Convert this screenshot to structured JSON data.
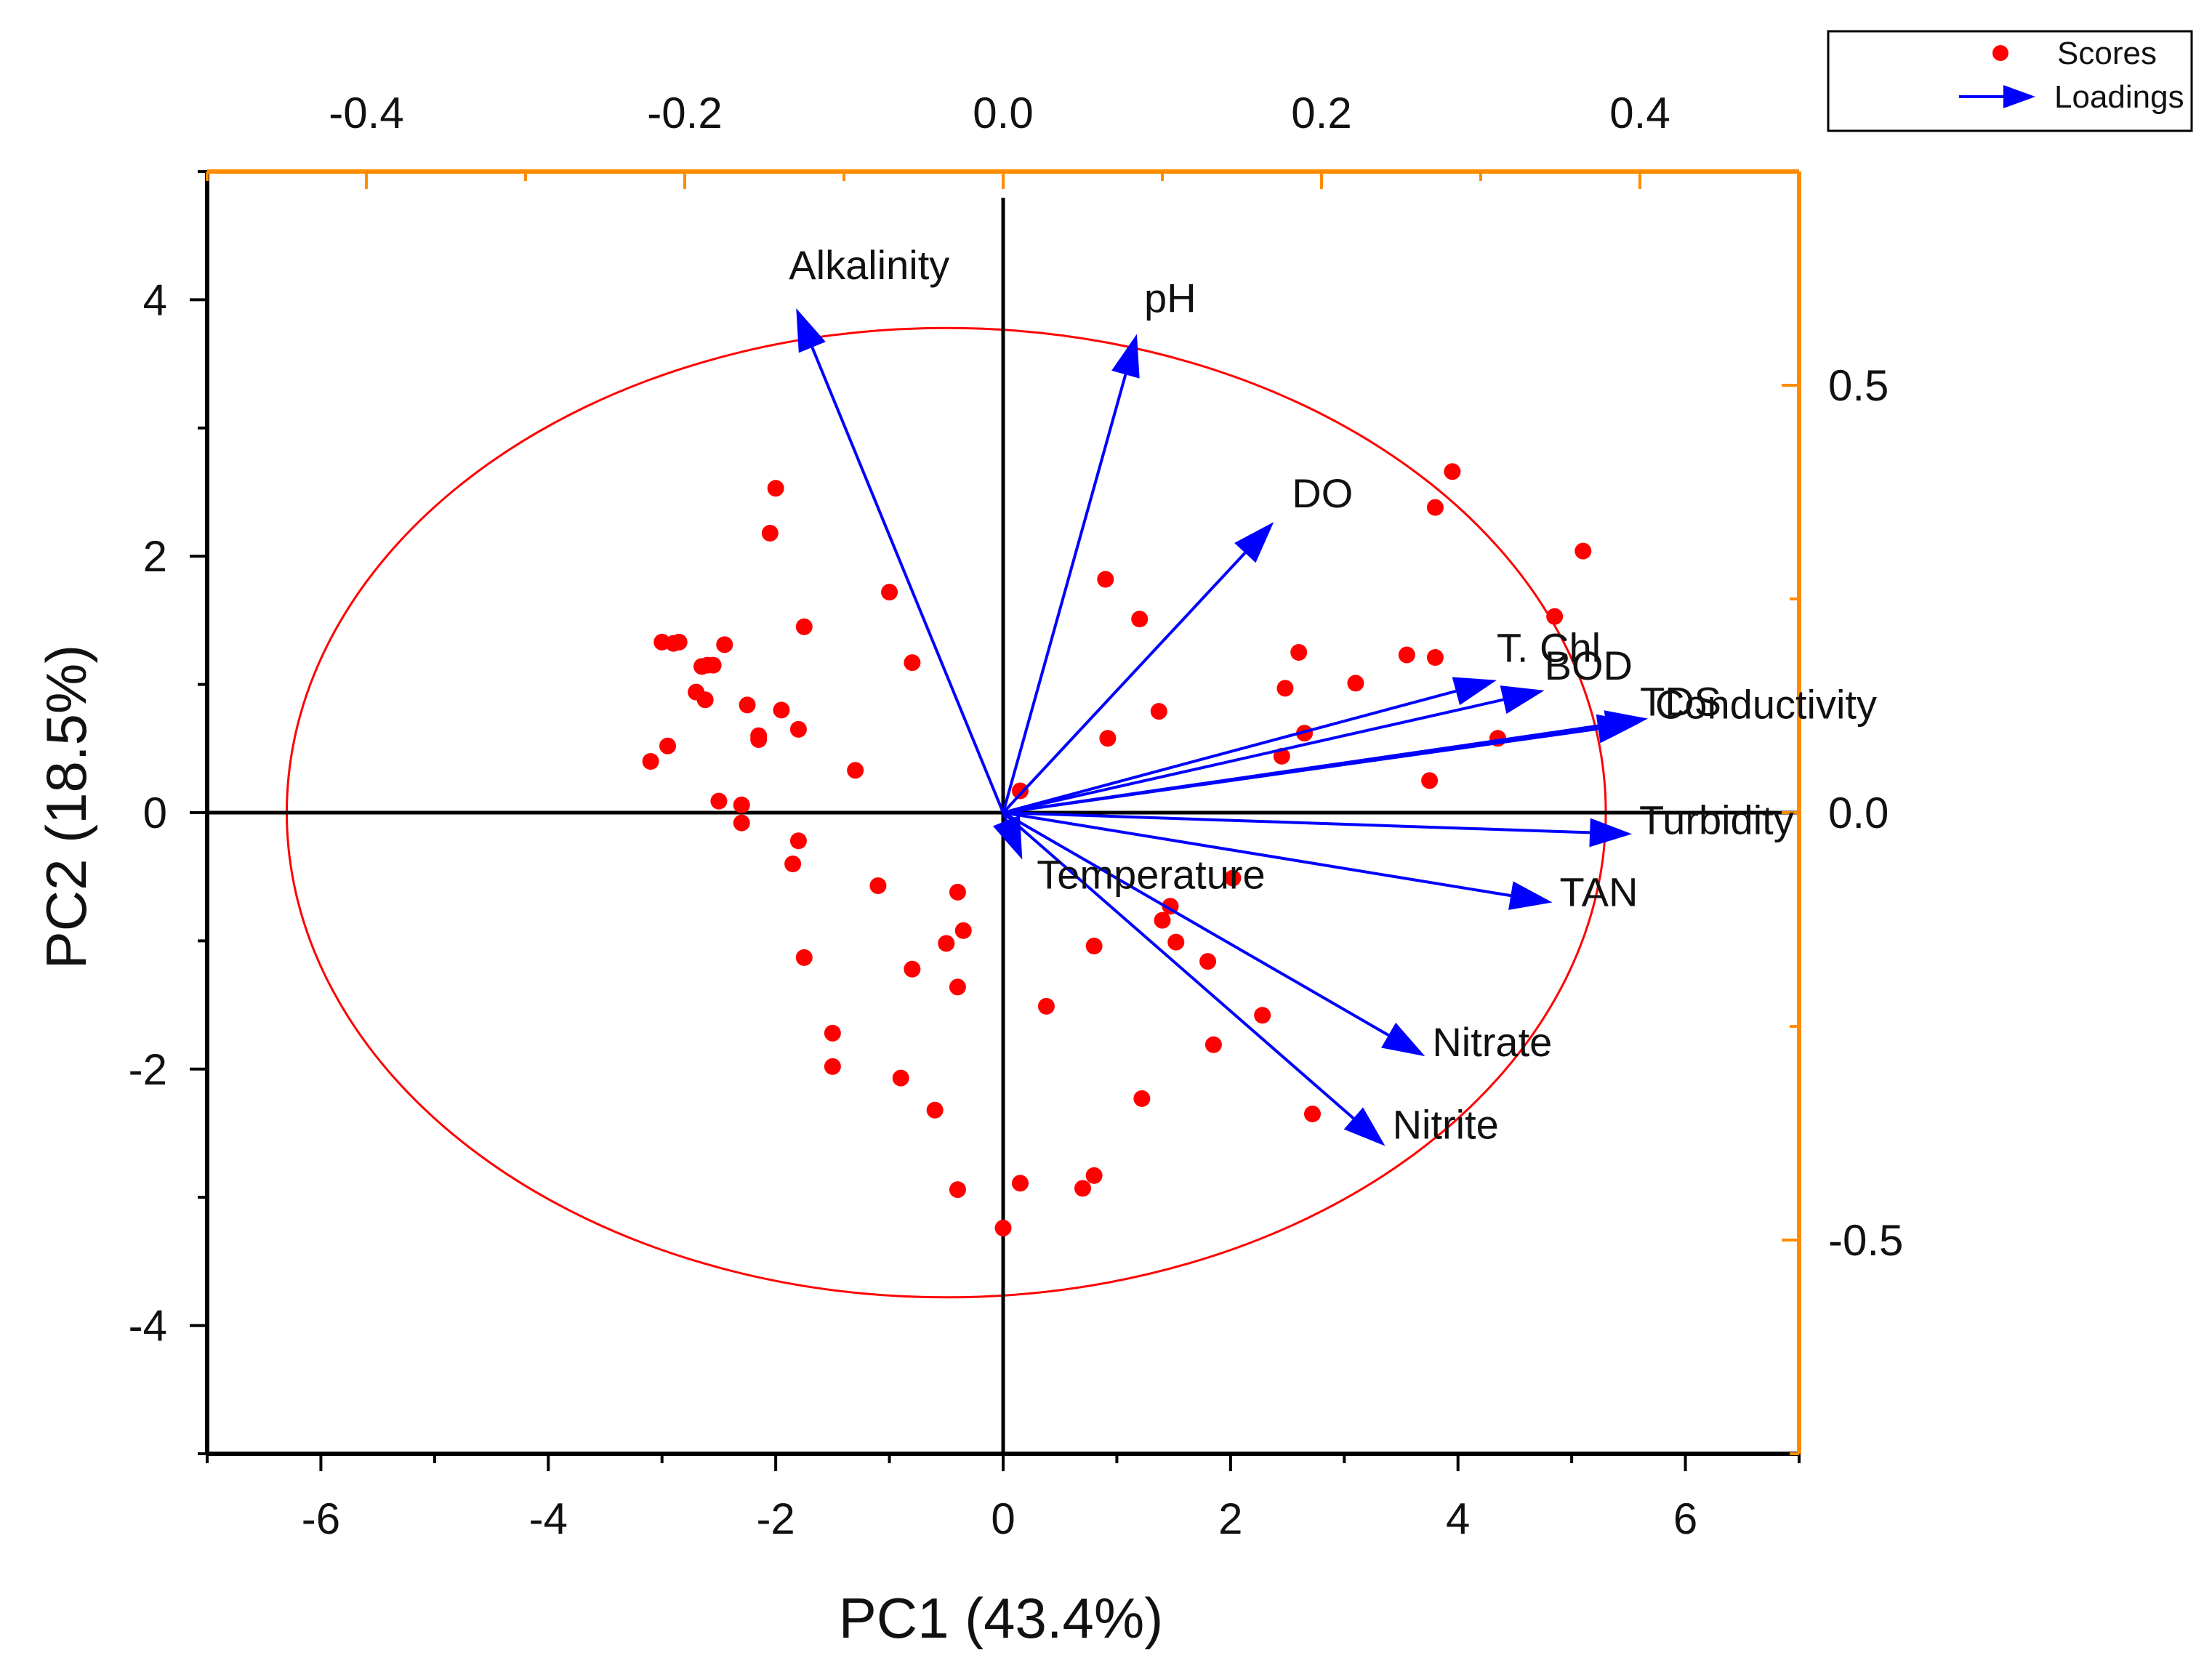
{
  "chart_data": {
    "type": "scatter",
    "title": "",
    "xlabel": "PC1 (43.4%)",
    "ylabel": "PC2 (18.5%)",
    "xlim": [
      -7,
      7
    ],
    "ylim": [
      -5,
      5
    ],
    "xticks": [
      -6,
      -4,
      -2,
      0,
      2,
      4,
      6
    ],
    "xtick_labels": [
      "-6",
      "-4",
      "-2",
      "0",
      "2",
      "4",
      "6"
    ],
    "yticks": [
      -4,
      -2,
      0,
      2,
      4
    ],
    "ytick_labels": [
      "-4",
      "-2",
      "0",
      "2",
      "4"
    ],
    "top_axis": {
      "lim": [
        -0.5,
        0.5
      ],
      "ticks": [
        -0.4,
        -0.2,
        0.0,
        0.2,
        0.4
      ],
      "tick_labels": [
        "-0.4",
        "-0.2",
        "0.0",
        "0.2",
        "0.4"
      ],
      "color": "#FF8C00"
    },
    "right_axis": {
      "lim": [
        -0.75,
        0.75
      ],
      "ticks": [
        0.5,
        0.0,
        -0.5
      ],
      "tick_labels": [
        "0.5",
        "0.0",
        "-0.5"
      ],
      "color": "#FF8C00"
    },
    "legend": {
      "position": "top-right-outside",
      "entries": [
        {
          "label": "Scores",
          "marker": "dot",
          "color": "#FF0000"
        },
        {
          "label": "Loadings",
          "marker": "arrow",
          "color": "#0000FF"
        }
      ]
    },
    "confidence_ellipse": {
      "cx": -0.5,
      "cy": 0,
      "rx": 5.8,
      "ry": 3.78,
      "color": "#FF0000"
    },
    "scores": [
      {
        "x": -3.1,
        "y": 0.4
      },
      {
        "x": -3.0,
        "y": 1.33
      },
      {
        "x": -2.9,
        "y": 1.32
      },
      {
        "x": -2.85,
        "y": 1.33
      },
      {
        "x": -2.95,
        "y": 0.52
      },
      {
        "x": -2.7,
        "y": 0.94
      },
      {
        "x": -2.65,
        "y": 1.14
      },
      {
        "x": -2.6,
        "y": 1.15
      },
      {
        "x": -2.62,
        "y": 0.88
      },
      {
        "x": -2.55,
        "y": 1.15
      },
      {
        "x": -2.45,
        "y": 1.31
      },
      {
        "x": -2.25,
        "y": 0.84
      },
      {
        "x": -2.15,
        "y": 0.57
      },
      {
        "x": -2.15,
        "y": 0.6
      },
      {
        "x": -2.5,
        "y": 0.09
      },
      {
        "x": -2.3,
        "y": 0.06
      },
      {
        "x": -2.3,
        "y": -0.08
      },
      {
        "x": -1.95,
        "y": 0.8
      },
      {
        "x": -1.8,
        "y": 0.65
      },
      {
        "x": -1.75,
        "y": 1.45
      },
      {
        "x": -2.05,
        "y": 2.18
      },
      {
        "x": -2.0,
        "y": 2.53
      },
      {
        "x": -1.8,
        "y": -0.22
      },
      {
        "x": -1.85,
        "y": -0.4
      },
      {
        "x": -1.75,
        "y": -1.13
      },
      {
        "x": -1.3,
        "y": 0.33
      },
      {
        "x": -1.5,
        "y": -1.72
      },
      {
        "x": -1.5,
        "y": -1.98
      },
      {
        "x": -1.0,
        "y": 1.72
      },
      {
        "x": -0.8,
        "y": 1.17
      },
      {
        "x": -1.1,
        "y": -0.57
      },
      {
        "x": -0.8,
        "y": -1.22
      },
      {
        "x": -0.9,
        "y": -2.07
      },
      {
        "x": -0.6,
        "y": -2.32
      },
      {
        "x": -0.5,
        "y": -1.02
      },
      {
        "x": -0.4,
        "y": -0.62
      },
      {
        "x": -0.35,
        "y": -0.92
      },
      {
        "x": -0.4,
        "y": -1.36
      },
      {
        "x": -0.4,
        "y": -2.94
      },
      {
        "x": 0.0,
        "y": -3.24
      },
      {
        "x": 0.15,
        "y": 0.17
      },
      {
        "x": 0.15,
        "y": -2.89
      },
      {
        "x": 0.38,
        "y": -1.51
      },
      {
        "x": 0.7,
        "y": -2.93
      },
      {
        "x": 0.8,
        "y": -2.83
      },
      {
        "x": 0.8,
        "y": -1.04
      },
      {
        "x": 0.9,
        "y": 1.82
      },
      {
        "x": 0.92,
        "y": 0.58
      },
      {
        "x": 1.2,
        "y": 1.51
      },
      {
        "x": 1.22,
        "y": -2.23
      },
      {
        "x": 1.37,
        "y": 0.79
      },
      {
        "x": 1.4,
        "y": -0.84
      },
      {
        "x": 1.47,
        "y": -0.73
      },
      {
        "x": 1.52,
        "y": -1.01
      },
      {
        "x": 1.8,
        "y": -1.16
      },
      {
        "x": 1.85,
        "y": -1.81
      },
      {
        "x": 2.02,
        "y": -0.51
      },
      {
        "x": 2.28,
        "y": -1.58
      },
      {
        "x": 2.45,
        "y": 0.44
      },
      {
        "x": 2.48,
        "y": 0.97
      },
      {
        "x": 2.6,
        "y": 1.25
      },
      {
        "x": 2.65,
        "y": 0.62
      },
      {
        "x": 2.72,
        "y": -2.35
      },
      {
        "x": 3.1,
        "y": 1.01
      },
      {
        "x": 3.55,
        "y": 1.23
      },
      {
        "x": 3.75,
        "y": 0.25
      },
      {
        "x": 3.8,
        "y": 1.21
      },
      {
        "x": 3.8,
        "y": 2.38
      },
      {
        "x": 3.95,
        "y": 2.66
      },
      {
        "x": 4.35,
        "y": 0.58
      },
      {
        "x": 4.85,
        "y": 1.53
      },
      {
        "x": 5.1,
        "y": 2.04
      }
    ],
    "loadings": [
      {
        "name": "Alkalinity",
        "pc1": -0.13,
        "pc2": 0.59
      },
      {
        "name": "pH",
        "pc1": 0.084,
        "pc2": 0.56
      },
      {
        "name": "DO",
        "pc1": 0.17,
        "pc2": 0.34
      },
      {
        "name": "T. Chl",
        "pc1": 0.31,
        "pc2": 0.155
      },
      {
        "name": "BOD",
        "pc1": 0.34,
        "pc2": 0.143
      },
      {
        "name": "TDS",
        "pc1": 0.4,
        "pc2": 0.105
      },
      {
        "name": "Conductivity",
        "pc1": 0.405,
        "pc2": 0.11
      },
      {
        "name": "Turbidity",
        "pc1": 0.395,
        "pc2": -0.025
      },
      {
        "name": "TAN",
        "pc1": 0.345,
        "pc2": -0.105
      },
      {
        "name": "Nitrate",
        "pc1": 0.265,
        "pc2": -0.285
      },
      {
        "name": "Nitrite",
        "pc1": 0.24,
        "pc2": -0.39
      },
      {
        "name": "Temperature",
        "pc1": 0.012,
        "pc2": -0.055
      }
    ],
    "colors": {
      "scores": "#FF0000",
      "loadings": "#0000FF",
      "axes": "#000000",
      "secondary_axes": "#FF8C00"
    }
  }
}
